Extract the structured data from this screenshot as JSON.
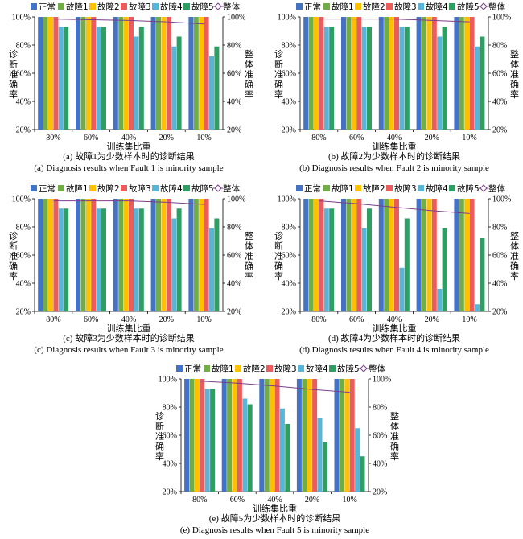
{
  "chart_data": [
    {
      "type": "bar",
      "categories": [
        "80%",
        "60%",
        "40%",
        "20%",
        "10%"
      ],
      "xlabel": "训练集比重",
      "ylabel": "诊断准确率",
      "y2label": "整体准确率",
      "ylim": [
        20,
        100
      ],
      "yticks": [
        "20%",
        "40%",
        "60%",
        "80%",
        "100%"
      ],
      "legend": [
        "正常",
        "故障1",
        "故障2",
        "故障3",
        "故障4",
        "故障5",
        "整体"
      ],
      "series": [
        {
          "name": "正常",
          "values": [
            100,
            100,
            100,
            100,
            100
          ]
        },
        {
          "name": "故障1",
          "values": [
            100,
            100,
            100,
            100,
            100
          ]
        },
        {
          "name": "故障2",
          "values": [
            100,
            100,
            100,
            100,
            100
          ]
        },
        {
          "name": "故障3",
          "values": [
            100,
            100,
            100,
            100,
            100
          ]
        },
        {
          "name": "故障4",
          "values": [
            93,
            93,
            86,
            79,
            72
          ]
        },
        {
          "name": "故障5",
          "values": [
            93,
            93,
            93,
            86,
            79
          ]
        }
      ],
      "overall": [
        98.5,
        98,
        97.5,
        96.5,
        95
      ],
      "caption_cn": "(a) 故障1为少数样本时的诊断结果",
      "caption_en": "(a) Diagnosis results when Fault 1 is minority sample"
    },
    {
      "type": "bar",
      "categories": [
        "80%",
        "60%",
        "40%",
        "20%",
        "10%"
      ],
      "xlabel": "训练集比重",
      "ylabel": "诊断准确率",
      "y2label": "整体准确率",
      "ylim": [
        20,
        100
      ],
      "yticks": [
        "20%",
        "40%",
        "60%",
        "80%",
        "100%"
      ],
      "legend": [
        "正常",
        "故障1",
        "故障2",
        "故障3",
        "故障4",
        "故障5",
        "整体"
      ],
      "series": [
        {
          "name": "正常",
          "values": [
            100,
            100,
            100,
            100,
            100
          ]
        },
        {
          "name": "故障1",
          "values": [
            100,
            100,
            100,
            100,
            100
          ]
        },
        {
          "name": "故障2",
          "values": [
            100,
            100,
            100,
            100,
            100
          ]
        },
        {
          "name": "故障3",
          "values": [
            100,
            100,
            100,
            100,
            100
          ]
        },
        {
          "name": "故障4",
          "values": [
            93,
            93,
            93,
            86,
            79
          ]
        },
        {
          "name": "故障5",
          "values": [
            93,
            93,
            93,
            93,
            86
          ]
        }
      ],
      "overall": [
        98.5,
        98.5,
        98.5,
        97.5,
        96.5
      ],
      "caption_cn": "(b) 故障2为少数样本时的诊断结果",
      "caption_en": "(b) Diagnosis results when Fault 2 is minority sample"
    },
    {
      "type": "bar",
      "categories": [
        "80%",
        "60%",
        "40%",
        "20%",
        "10%"
      ],
      "xlabel": "训练集比重",
      "ylabel": "诊断准确率",
      "y2label": "整体准确率",
      "ylim": [
        20,
        100
      ],
      "yticks": [
        "20%",
        "40%",
        "60%",
        "80%",
        "100%"
      ],
      "legend": [
        "正常",
        "故障1",
        "故障2",
        "故障3",
        "故障4",
        "故障5",
        "整体"
      ],
      "series": [
        {
          "name": "正常",
          "values": [
            100,
            100,
            100,
            100,
            100
          ]
        },
        {
          "name": "故障1",
          "values": [
            100,
            100,
            100,
            100,
            100
          ]
        },
        {
          "name": "故障2",
          "values": [
            100,
            100,
            100,
            100,
            100
          ]
        },
        {
          "name": "故障3",
          "values": [
            100,
            100,
            100,
            100,
            100
          ]
        },
        {
          "name": "故障4",
          "values": [
            93,
            93,
            93,
            86,
            79
          ]
        },
        {
          "name": "故障5",
          "values": [
            93,
            93,
            93,
            93,
            86
          ]
        }
      ],
      "overall": [
        98.5,
        98.5,
        98.5,
        97.5,
        96
      ],
      "caption_cn": "(c) 故障3为少数样本时的诊断结果",
      "caption_en": "(c) Diagnosis results when Fault 3 is minority sample"
    },
    {
      "type": "bar",
      "categories": [
        "80%",
        "60%",
        "40%",
        "20%",
        "10%"
      ],
      "xlabel": "训练集比重",
      "ylabel": "诊断准确率",
      "y2label": "整体准确率",
      "ylim": [
        20,
        100
      ],
      "yticks": [
        "20%",
        "40%",
        "60%",
        "80%",
        "100%"
      ],
      "legend": [
        "正常",
        "故障1",
        "故障2",
        "故障3",
        "故障4",
        "故障5",
        "整体"
      ],
      "series": [
        {
          "name": "正常",
          "values": [
            100,
            100,
            100,
            100,
            100
          ]
        },
        {
          "name": "故障1",
          "values": [
            100,
            100,
            100,
            100,
            100
          ]
        },
        {
          "name": "故障2",
          "values": [
            100,
            100,
            100,
            100,
            100
          ]
        },
        {
          "name": "故障3",
          "values": [
            100,
            100,
            100,
            100,
            100
          ]
        },
        {
          "name": "故障4",
          "values": [
            93,
            79,
            51,
            36,
            25
          ]
        },
        {
          "name": "故障5",
          "values": [
            93,
            93,
            86,
            79,
            72
          ]
        }
      ],
      "overall": [
        98.5,
        96.5,
        94,
        91.5,
        89.5
      ],
      "caption_cn": "(d) 故障4为少数样本时的诊断结果",
      "caption_en": "(d) Diagnosis results when Fault 4 is minority sample"
    },
    {
      "type": "bar",
      "categories": [
        "80%",
        "60%",
        "40%",
        "20%",
        "10%"
      ],
      "xlabel": "训练集比重",
      "ylabel": "诊断准确率",
      "y2label": "整体准确率",
      "ylim": [
        20,
        100
      ],
      "yticks": [
        "20%",
        "40%",
        "60%",
        "80%",
        "100%"
      ],
      "legend": [
        "正常",
        "故障1",
        "故障2",
        "故障3",
        "故障4",
        "故障5",
        "整体"
      ],
      "series": [
        {
          "name": "正常",
          "values": [
            100,
            100,
            100,
            100,
            100
          ]
        },
        {
          "name": "故障1",
          "values": [
            100,
            100,
            100,
            100,
            100
          ]
        },
        {
          "name": "故障2",
          "values": [
            100,
            100,
            100,
            100,
            100
          ]
        },
        {
          "name": "故障3",
          "values": [
            100,
            100,
            100,
            100,
            100
          ]
        },
        {
          "name": "故障4",
          "values": [
            93,
            86,
            79,
            72,
            65
          ]
        },
        {
          "name": "故障5",
          "values": [
            93,
            82,
            68,
            55,
            45
          ]
        }
      ],
      "overall": [
        98.5,
        97,
        95,
        92.5,
        90.5
      ],
      "caption_cn": "(e) 故障5为少数样本时的诊断结果",
      "caption_en": "(e) Diagnosis results when Fault 5 is minority sample"
    }
  ],
  "colors": [
    "#4472c4",
    "#70ad47",
    "#ffc000",
    "#ed5c5c",
    "#5ab4d6",
    "#2e9e63"
  ],
  "line_color": "#7b3f8c"
}
